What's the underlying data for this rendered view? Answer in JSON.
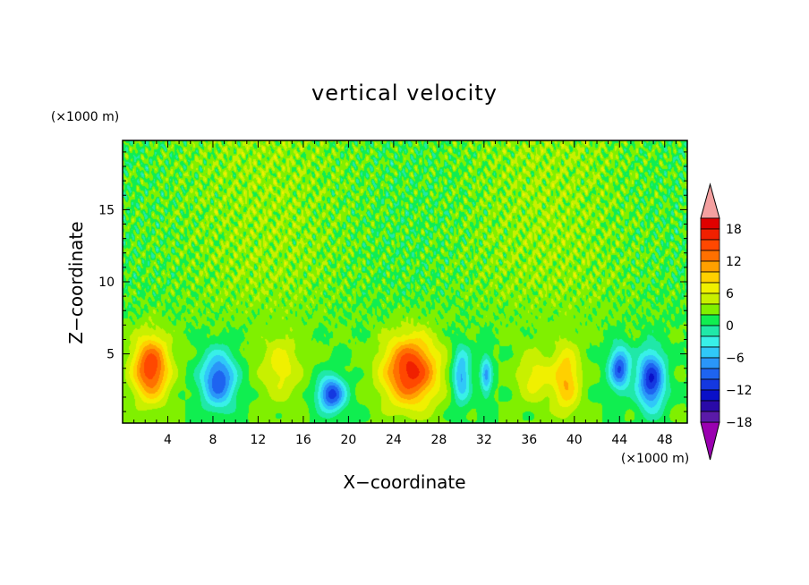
{
  "chart_data": {
    "type": "heatmap",
    "title": "vertical velocity",
    "xlabel": "X−coordinate",
    "ylabel": "Z−coordinate",
    "x_unit": "(×1000 m)",
    "y_unit": "(×1000 m)",
    "xlim": [
      0,
      50
    ],
    "ylim": [
      0.2,
      19.8
    ],
    "x_ticks": [
      "4",
      "8",
      "12",
      "16",
      "20",
      "24",
      "28",
      "32",
      "36",
      "40",
      "44",
      "48"
    ],
    "y_ticks": [
      "5",
      "10",
      "15"
    ],
    "colorbar": {
      "tick_labels": [
        "18",
        "12",
        "6",
        "0",
        "−6",
        "−12",
        "−18"
      ],
      "levels": [
        -20,
        -18,
        -16,
        -14,
        -12,
        -10,
        -8,
        -6,
        -4,
        -2,
        0,
        2,
        4,
        6,
        8,
        10,
        12,
        14,
        16,
        18,
        20
      ],
      "colors": [
        "#9a00b0",
        "#5a1aa8",
        "#2a0aa8",
        "#0a10c8",
        "#1438e0",
        "#1e64f0",
        "#2a96f8",
        "#30c8f8",
        "#38f0e8",
        "#20e8a8",
        "#10ee50",
        "#80f000",
        "#c8f000",
        "#f0f000",
        "#ffd000",
        "#ffa000",
        "#ff7000",
        "#ff4800",
        "#f02000",
        "#e00000",
        "#f4a0a0"
      ]
    },
    "features": [
      {
        "x": 2.5,
        "z": 4.0,
        "peak": 14,
        "sx": 1.6,
        "sz": 2.2
      },
      {
        "x": 8.5,
        "z": 3.2,
        "peak": -12,
        "sx": 1.5,
        "sz": 1.9
      },
      {
        "x": 14.0,
        "z": 4.0,
        "peak": 5,
        "sx": 1.8,
        "sz": 2.3
      },
      {
        "x": 18.5,
        "z": 2.2,
        "peak": -13,
        "sx": 1.2,
        "sz": 1.2
      },
      {
        "x": 25.5,
        "z": 3.8,
        "peak": 15,
        "sx": 2.4,
        "sz": 2.4
      },
      {
        "x": 30.0,
        "z": 3.5,
        "peak": -9,
        "sx": 0.8,
        "sz": 1.9
      },
      {
        "x": 32.2,
        "z": 3.5,
        "peak": -8,
        "sx": 0.5,
        "sz": 1.5
      },
      {
        "x": 36.5,
        "z": 3.4,
        "peak": 5,
        "sx": 1.6,
        "sz": 1.8
      },
      {
        "x": 39.3,
        "z": 3.2,
        "peak": 8,
        "sx": 1.2,
        "sz": 2.4
      },
      {
        "x": 44.0,
        "z": 4.0,
        "peak": -12,
        "sx": 0.9,
        "sz": 1.5
      },
      {
        "x": 46.8,
        "z": 3.2,
        "peak": -14,
        "sx": 1.2,
        "sz": 2.0
      }
    ]
  }
}
